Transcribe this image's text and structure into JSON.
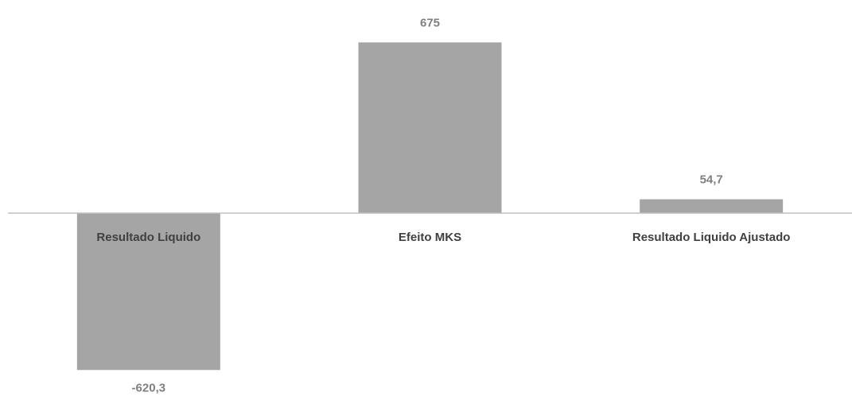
{
  "chart_data": {
    "type": "bar",
    "title": "",
    "xlabel": "",
    "ylabel": "",
    "categories": [
      "Resultado Liquido",
      "Efeito MKS",
      "Resultado Liquido Ajustado"
    ],
    "values": [
      -620.3,
      675,
      54.7
    ],
    "data_labels": [
      "-620,3",
      "675",
      "54,7"
    ],
    "ylim": [
      -700,
      760
    ],
    "grid": false,
    "legend": "none",
    "colors": {
      "bar": "#a5a5a5",
      "axis": "#bfbfbf",
      "label_text": "#404040",
      "data_label_text": "#7f7f7f"
    }
  }
}
